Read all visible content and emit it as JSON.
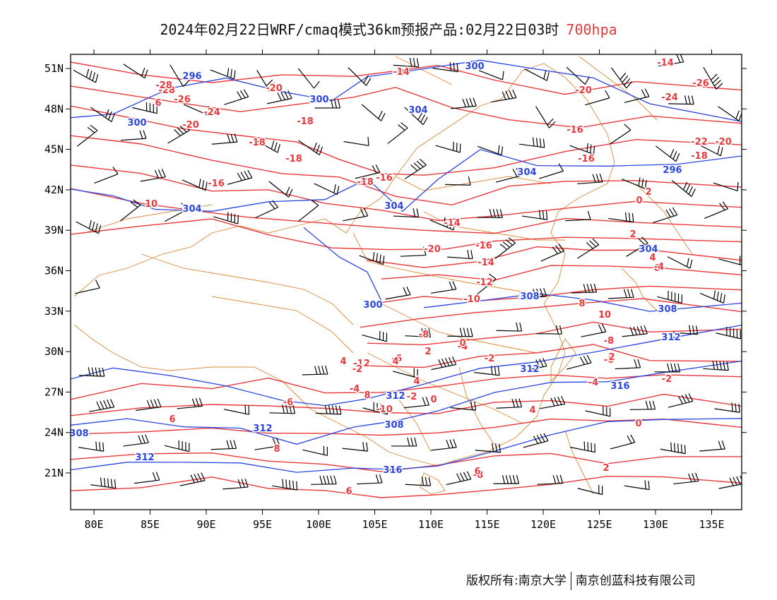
{
  "title": {
    "main": "2024年02月22日WRF/cmaq模式36km预报产品:02月22日03时",
    "level": "700hpa"
  },
  "axes": {
    "lon_ticks": [
      "80E",
      "85E",
      "90E",
      "95E",
      "100E",
      "105E",
      "110E",
      "115E",
      "120E",
      "125E",
      "130E",
      "135E"
    ],
    "lat_ticks": [
      "51N",
      "48N",
      "45N",
      "42N",
      "39N",
      "36N",
      "33N",
      "30N",
      "27N",
      "24N",
      "21N"
    ]
  },
  "colors": {
    "temperature": "#e8383c",
    "height": "#2a45e0",
    "border": "#d98a3a",
    "wind": "#000000"
  },
  "temperature_labels": [
    "-14",
    "-28",
    "-26",
    "-24",
    "-20",
    "-20",
    "-18",
    "-18",
    "-18",
    "-16",
    "-16",
    "-16",
    "-14",
    "-20",
    "-16",
    "-14",
    "-12",
    "-10",
    "-8",
    "-6",
    "-4",
    "-2",
    "0",
    "2",
    "4",
    "6",
    "8",
    "10",
    "-8",
    "-6",
    "-4",
    "-2",
    "0",
    "2",
    "4",
    "-12",
    "-10",
    "-8",
    "-14",
    "-24",
    "-26",
    "-28",
    "-22",
    "-20",
    "-18",
    "-16",
    "-20",
    "-18",
    "-6",
    "-4",
    "-2",
    "0",
    "2",
    "4",
    "6",
    "8",
    "6",
    "4",
    "2",
    "-4",
    "-2",
    "0",
    "2",
    "4",
    "6",
    "8",
    "6",
    "10"
  ],
  "height_labels": [
    "296",
    "300",
    "300",
    "304",
    "304",
    "304",
    "304",
    "300",
    "304",
    "296",
    "304",
    "308",
    "308",
    "312",
    "312",
    "316",
    "312",
    "308",
    "312",
    "316",
    "312",
    "308",
    "300"
  ],
  "footer": {
    "left": "版权所有:南京大学",
    "right": "南京创蓝科技有限公司"
  }
}
